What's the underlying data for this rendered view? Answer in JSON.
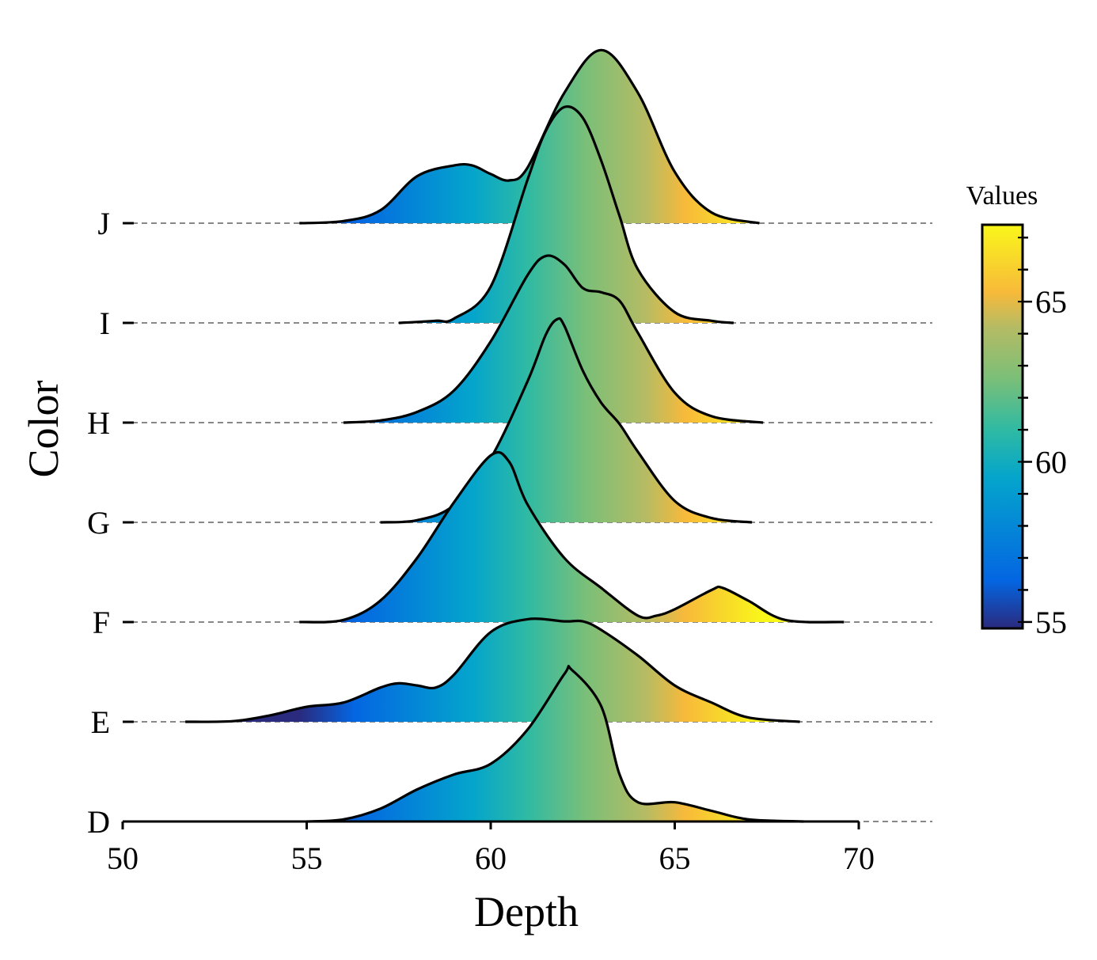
{
  "chart_data": {
    "type": "ridgeline",
    "title": "",
    "xlabel": "Depth",
    "ylabel": "Color",
    "xlim": [
      50,
      72
    ],
    "xticks": [
      50,
      55,
      60,
      65,
      70
    ],
    "grid": "dashed baselines per category",
    "categories": [
      "D",
      "E",
      "F",
      "G",
      "H",
      "I",
      "J"
    ],
    "series": [
      {
        "name": "D",
        "range": [
          55,
          68.5
        ],
        "density": [
          [
            55,
            0
          ],
          [
            56,
            0.01
          ],
          [
            57,
            0.06
          ],
          [
            58,
            0.15
          ],
          [
            59,
            0.22
          ],
          [
            60,
            0.27
          ],
          [
            61,
            0.43
          ],
          [
            62,
            0.69
          ],
          [
            62.2,
            0.71
          ],
          [
            63,
            0.54
          ],
          [
            63.5,
            0.22
          ],
          [
            64,
            0.09
          ],
          [
            65,
            0.09
          ],
          [
            66,
            0.05
          ],
          [
            67,
            0.01
          ],
          [
            68.5,
            0
          ]
        ]
      },
      {
        "name": "E",
        "range": [
          51.7,
          68.4
        ],
        "density": [
          [
            51.7,
            0
          ],
          [
            53,
            0.003
          ],
          [
            54,
            0.03
          ],
          [
            55,
            0.07
          ],
          [
            56,
            0.09
          ],
          [
            57,
            0.16
          ],
          [
            57.5,
            0.18
          ],
          [
            58,
            0.17
          ],
          [
            58.5,
            0.16
          ],
          [
            59,
            0.22
          ],
          [
            60,
            0.42
          ],
          [
            61,
            0.48
          ],
          [
            62,
            0.47
          ],
          [
            62.5,
            0.47
          ],
          [
            63,
            0.43
          ],
          [
            64,
            0.31
          ],
          [
            65,
            0.17
          ],
          [
            66,
            0.09
          ],
          [
            67,
            0.02
          ],
          [
            68.4,
            0
          ]
        ]
      },
      {
        "name": "F",
        "range": [
          54.8,
          69.6
        ],
        "density": [
          [
            54.8,
            0
          ],
          [
            56,
            0.01
          ],
          [
            57,
            0.1
          ],
          [
            58,
            0.3
          ],
          [
            59,
            0.56
          ],
          [
            60,
            0.78
          ],
          [
            60.5,
            0.75
          ],
          [
            61,
            0.55
          ],
          [
            62,
            0.3
          ],
          [
            63,
            0.16
          ],
          [
            64,
            0.03
          ],
          [
            64.5,
            0.03
          ],
          [
            65,
            0.06
          ],
          [
            66,
            0.15
          ],
          [
            66.3,
            0.16
          ],
          [
            67,
            0.1
          ],
          [
            68,
            0.01
          ],
          [
            69.6,
            0
          ]
        ]
      },
      {
        "name": "G",
        "range": [
          57,
          67.1
        ],
        "density": [
          [
            57,
            0
          ],
          [
            58,
            0.01
          ],
          [
            59,
            0.08
          ],
          [
            60,
            0.3
          ],
          [
            61,
            0.66
          ],
          [
            61.5,
            0.88
          ],
          [
            61.8,
            0.95
          ],
          [
            62,
            0.92
          ],
          [
            62.5,
            0.71
          ],
          [
            63,
            0.56
          ],
          [
            63.5,
            0.46
          ],
          [
            64,
            0.33
          ],
          [
            65,
            0.1
          ],
          [
            66,
            0.02
          ],
          [
            67.1,
            0
          ]
        ]
      },
      {
        "name": "H",
        "range": [
          56,
          67.4
        ],
        "density": [
          [
            56,
            0
          ],
          [
            57,
            0.01
          ],
          [
            58,
            0.05
          ],
          [
            59,
            0.15
          ],
          [
            60,
            0.38
          ],
          [
            61,
            0.69
          ],
          [
            61.5,
            0.78
          ],
          [
            62,
            0.74
          ],
          [
            62.5,
            0.63
          ],
          [
            63,
            0.61
          ],
          [
            63.5,
            0.57
          ],
          [
            64,
            0.42
          ],
          [
            65,
            0.14
          ],
          [
            66,
            0.03
          ],
          [
            67.4,
            0
          ]
        ]
      },
      {
        "name": "I",
        "range": [
          57.5,
          66.6
        ],
        "density": [
          [
            57.5,
            0
          ],
          [
            58.5,
            0.01
          ],
          [
            59,
            0.02
          ],
          [
            60,
            0.17
          ],
          [
            61,
            0.67
          ],
          [
            61.5,
            0.9
          ],
          [
            62,
            1.01
          ],
          [
            62.5,
            0.96
          ],
          [
            63,
            0.76
          ],
          [
            63.5,
            0.5
          ],
          [
            64,
            0.25
          ],
          [
            65,
            0.05
          ],
          [
            66,
            0.01
          ],
          [
            66.6,
            0
          ]
        ]
      },
      {
        "name": "J",
        "range": [
          54.8,
          67.3
        ],
        "density": [
          [
            54.8,
            0
          ],
          [
            56,
            0.01
          ],
          [
            57,
            0.06
          ],
          [
            58,
            0.22
          ],
          [
            59,
            0.27
          ],
          [
            59.5,
            0.27
          ],
          [
            60,
            0.23
          ],
          [
            60.5,
            0.2
          ],
          [
            61,
            0.26
          ],
          [
            62,
            0.61
          ],
          [
            63,
            0.81
          ],
          [
            64,
            0.61
          ],
          [
            65,
            0.24
          ],
          [
            66,
            0.05
          ],
          [
            67.3,
            0
          ]
        ]
      }
    ],
    "colorbar": {
      "title": "Values",
      "range": [
        54.8,
        67.4
      ],
      "ticks": [
        55,
        60,
        65
      ],
      "stops": [
        {
          "value": 54.8,
          "color": "#2a2a7e"
        },
        {
          "value": 56.3,
          "color": "#0466e2"
        },
        {
          "value": 59.5,
          "color": "#04a5cc"
        },
        {
          "value": 61.0,
          "color": "#2fbaa3"
        },
        {
          "value": 62.6,
          "color": "#7bbf78"
        },
        {
          "value": 64.2,
          "color": "#b5bb64"
        },
        {
          "value": 65.3,
          "color": "#f8ba3a"
        },
        {
          "value": 67.4,
          "color": "#f9f71a"
        }
      ]
    }
  }
}
